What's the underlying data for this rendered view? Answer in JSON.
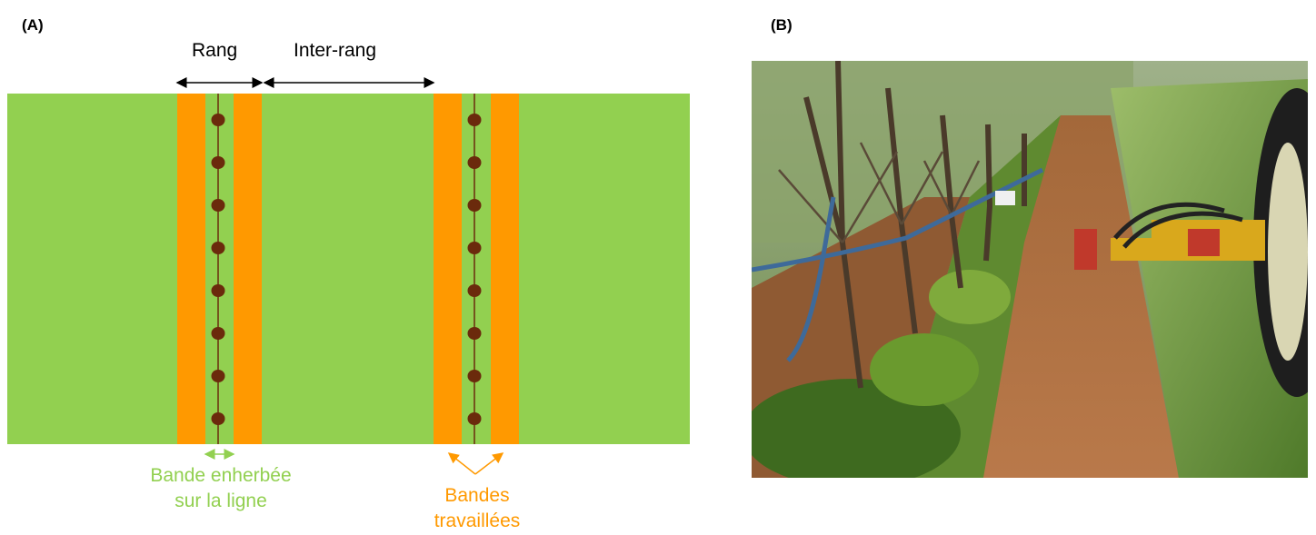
{
  "panel_a": {
    "label": "(A)",
    "dimension_rang": "Rang",
    "dimension_inter_rang": "Inter-rang",
    "legend_grass_band": [
      "Bande enherbée",
      "sur la ligne"
    ],
    "legend_worked_bands": [
      "Bandes",
      "travaillées"
    ],
    "colors": {
      "grass": "#92d050",
      "worked_band": "#ff9900",
      "tree": "#6b2a0c",
      "grass_text": "#92d050",
      "worked_text": "#ff9900"
    },
    "trees_per_row": 8
  },
  "panel_b": {
    "label": "(B)",
    "photo_description_icon": "orchard-tillage-photo"
  }
}
